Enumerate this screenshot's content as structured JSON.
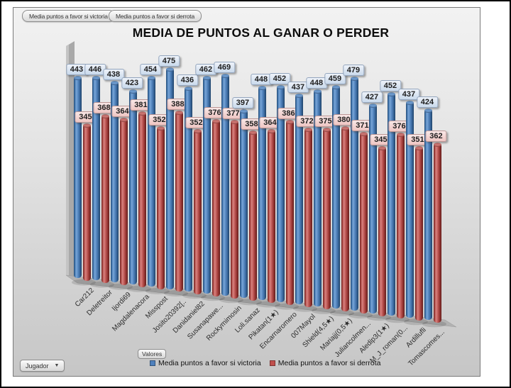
{
  "filters": [
    "Media puntos a favor si victoria",
    "Media puntos a favor si derrota"
  ],
  "title": "MEDIA DE PUNTOS AL GANAR O PERDER",
  "buttons": {
    "values": "Valores",
    "axis": "Jugador"
  },
  "chart_data": {
    "type": "bar",
    "variant": "3d-cylinder",
    "title": "MEDIA DE PUNTOS AL GANAR O PERDER",
    "categories": [
      "Car212",
      "Deletreitor",
      "Ijordi69",
      "Magdalenacora",
      "Misspost",
      "Josito20392[..",
      "Danidaniel82",
      "Susanapawe...",
      "Rockymimosin",
      "Loli.sanaz",
      "Pikatan(1★)",
      "Encarnaromero",
      "007Mayol",
      "Shield(4,5★)",
      "Mariajj(0,5★)",
      "Juliancolmen...",
      "Aledip3(1★)",
      "M_J_roman(0...",
      "Ardillufli",
      "Tomascomes..."
    ],
    "series": [
      {
        "name": "Media puntos a favor si victoria",
        "color": "#4f81bd",
        "values": [
          443,
          446,
          438,
          423,
          454,
          475,
          436,
          462,
          469,
          397,
          448,
          452,
          437,
          448,
          459,
          479,
          427,
          452,
          437,
          424
        ]
      },
      {
        "name": "Media puntos a favor si derrota",
        "color": "#c0504d",
        "values": [
          345,
          368,
          364,
          381,
          352,
          388,
          352,
          376,
          377,
          358,
          364,
          386,
          372,
          375,
          380,
          371,
          345,
          376,
          351,
          362
        ]
      }
    ],
    "data_labels": true,
    "legend_position": "bottom",
    "category_axis_field": "Jugador",
    "values_field": "Valores"
  }
}
